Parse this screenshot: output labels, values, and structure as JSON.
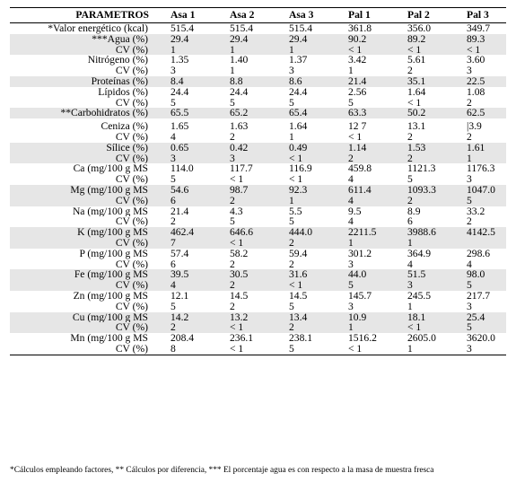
{
  "headers": [
    "PARAMETROS",
    "Asa 1",
    "Asa 2",
    "Asa 3",
    "Pal 1",
    "Pal 2",
    "Pal 3"
  ],
  "groups": [
    {
      "rows": [
        {
          "label": "*Valor energético (kcal)",
          "values": [
            "515.4",
            "515.4",
            "515.4",
            "361.8",
            "356.0",
            "349.7"
          ]
        }
      ]
    },
    {
      "rows": [
        {
          "label": "***Agua (%)",
          "values": [
            "29.4",
            "29.4",
            "29.4",
            "90.2",
            "89.2",
            "89.3"
          ]
        },
        {
          "label": "CV (%)",
          "values": [
            "1",
            "1",
            "1",
            "< 1",
            "< 1",
            "< 1"
          ]
        }
      ]
    },
    {
      "rows": [
        {
          "label": "Nitrógeno (%)",
          "values": [
            "1.35",
            "1.40",
            "1.37",
            "3.42",
            "5.61",
            "3.60"
          ]
        },
        {
          "label": "CV (%)",
          "values": [
            "3",
            "1",
            "3",
            "1",
            "2",
            "3"
          ]
        }
      ]
    },
    {
      "rows": [
        {
          "label": "Proteínas (%)",
          "values": [
            "8.4",
            "8.8",
            "8.6",
            "21.4",
            "35.1",
            "22.5"
          ]
        }
      ]
    },
    {
      "rows": [
        {
          "label": "Lípidos (%)",
          "values": [
            "24.4",
            "24.4",
            "24.4",
            "2.56",
            "1.64",
            "1.08"
          ]
        },
        {
          "label": "CV (%)",
          "values": [
            "5",
            "5",
            "5",
            "5",
            "< 1",
            "2"
          ]
        }
      ]
    },
    {
      "rows": [
        {
          "label": "**Carbohidratos (%)",
          "values": [
            "65.5",
            "65.2",
            "65.4",
            "63.3",
            "50.2",
            "62.5"
          ]
        }
      ]
    },
    {
      "rows": [
        {
          "label": "Ceniza (%)",
          "values": [
            "1.65",
            "1.63",
            "1.64",
            "12 7",
            "13.1",
            "|3.9"
          ]
        },
        {
          "label": "CV (%)",
          "values": [
            "4",
            "2",
            "1",
            "< 1",
            "2",
            "2"
          ]
        }
      ]
    },
    {
      "rows": [
        {
          "label": "Sílice (%)",
          "values": [
            "0.65",
            "0.42",
            "0.49",
            "1.14",
            "1.53",
            "1.61"
          ]
        },
        {
          "label": "CV (%)",
          "values": [
            "3",
            "3",
            "< 1",
            "2",
            "2",
            "1"
          ]
        }
      ]
    },
    {
      "rows": [
        {
          "label": "Ca (mg/100 g MS",
          "values": [
            "114.0",
            "117.7",
            "116.9",
            "459.8",
            "1121.3",
            "1176.3"
          ]
        },
        {
          "label": "CV (%)",
          "values": [
            "5",
            "< 1",
            "< 1",
            "4",
            "5",
            "3"
          ]
        }
      ]
    },
    {
      "rows": [
        {
          "label": "Mg (mg/100 g MS",
          "values": [
            "54.6",
            "98.7",
            "92.3",
            "611.4",
            "1093.3",
            "1047.0"
          ]
        },
        {
          "label": "CV (%)",
          "values": [
            "6",
            "2",
            "1",
            "4",
            "2",
            "5"
          ]
        }
      ]
    },
    {
      "rows": [
        {
          "label": "Na  (mg/100 g MS",
          "values": [
            "21.4",
            "4.3",
            "5.5",
            "9.5",
            "8.9",
            "33.2"
          ]
        },
        {
          "label": "CV (%)",
          "values": [
            "2",
            "5",
            "5",
            "4",
            "6",
            "2"
          ]
        }
      ]
    },
    {
      "rows": [
        {
          "label": "K (mg/100 g MS",
          "values": [
            "462.4",
            "646.6",
            "444.0",
            "2211.5",
            "3988.6",
            "4142.5"
          ]
        },
        {
          "label": "CV (%)",
          "values": [
            "7",
            "< 1",
            "2",
            "1",
            "1",
            ""
          ]
        }
      ]
    },
    {
      "rows": [
        {
          "label": "P (mg/100 g MS",
          "values": [
            "57.4",
            "58.2",
            "59.4",
            "301.2",
            "364.9",
            "298.6"
          ]
        },
        {
          "label": "CV (%)",
          "values": [
            "6",
            "2",
            "2",
            "3",
            "4",
            "4"
          ]
        }
      ]
    },
    {
      "rows": [
        {
          "label": "Fe (mg/100 g MS",
          "values": [
            "39.5",
            "30.5",
            "31.6",
            "44.0",
            "51.5",
            "98.0"
          ]
        },
        {
          "label": "CV (%)",
          "values": [
            "4",
            "2",
            "< 1",
            "5",
            "3",
            "5"
          ]
        }
      ]
    },
    {
      "rows": [
        {
          "label": "Zn (mg/100 g MS",
          "values": [
            "12.1",
            "14.5",
            "14.5",
            "145.7",
            "245.5",
            "217.7"
          ]
        },
        {
          "label": "CV (%)",
          "values": [
            "5",
            "2",
            "5",
            "3",
            "1",
            "3"
          ]
        }
      ]
    },
    {
      "rows": [
        {
          "label": "Cu (mg/100 g MS",
          "values": [
            "14.2",
            "13.2",
            "13.4",
            "10.9",
            "18.1",
            "25.4"
          ]
        },
        {
          "label": "CV (%)",
          "values": [
            "2",
            "< 1",
            "2",
            "1",
            "< 1",
            "5"
          ]
        }
      ]
    },
    {
      "rows": [
        {
          "label": "Mn (mg/100 g MS",
          "values": [
            "208.4",
            "236.1",
            "238.1",
            "1516.2",
            "2605.0",
            "3620.0"
          ]
        },
        {
          "label": "CV (%)",
          "values": [
            "8",
            "< 1",
            "5",
            "< 1",
            "1",
            "3"
          ]
        }
      ]
    }
  ],
  "footnote": "*Cálculos empleando factores, ** Cálculos por diferencia, *** El porcentaje agua es con respecto a la masa de muestra fresca",
  "colors": {
    "shade": "#e6e6e6",
    "rule": "#000000"
  }
}
